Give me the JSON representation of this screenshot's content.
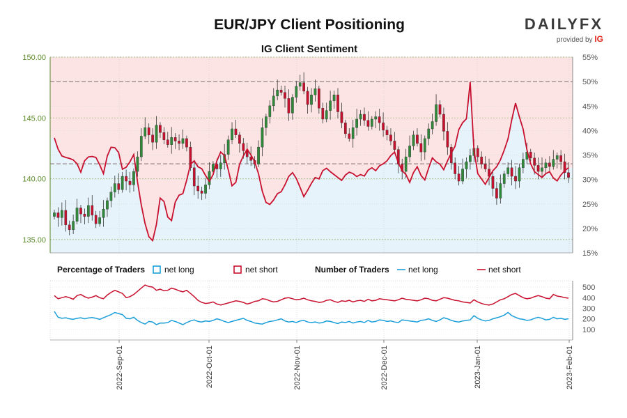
{
  "title": "EUR/JPY Client Positioning",
  "subtitle": "IG Client Sentiment",
  "logo": {
    "brand_a": "DAILY",
    "brand_b": "FX",
    "provided_by": "provided by",
    "ig": "IG"
  },
  "colors": {
    "long": "#1a9fd9",
    "short": "#c8102e",
    "candle_up": "#2f8a3a",
    "candle_down": "#c8102e",
    "bg_short": "#fde4e4",
    "bg_long": "#e6f3fb",
    "price_axis": "#5a8a2a"
  },
  "legend": {
    "percentage_label": "Percentage of Traders",
    "number_label": "Number of Traders",
    "net_long": "net long",
    "net_short": "net short"
  },
  "chart_data": [
    {
      "type": "candlestick",
      "title": "EUR/JPY Client Positioning",
      "subtitle": "IG Client Sentiment",
      "y_price_ticks": [
        "135.00",
        "140.00",
        "145.00",
        "150.00"
      ],
      "y_pct_ticks": [
        "15%",
        "20%",
        "25%",
        "30%",
        "35%",
        "40%",
        "45%",
        "50%",
        "55%"
      ],
      "ylim_price": [
        133.9,
        150.0
      ],
      "ylim_pct": [
        15,
        55
      ],
      "x_ticks": [
        "2022-Sep-01",
        "2022-Oct-01",
        "2022-Nov-01",
        "2022-Dec-01",
        "2023-Jan-01",
        "2023-Feb-01"
      ],
      "price_close": [
        137.2,
        136.8,
        137.4,
        136.2,
        135.8,
        136.5,
        137.6,
        137.1,
        136.9,
        137.8,
        137.0,
        136.3,
        136.8,
        137.5,
        138.2,
        138.9,
        139.6,
        139.1,
        140.2,
        139.8,
        139.5,
        140.6,
        141.8,
        143.5,
        144.2,
        143.6,
        143.0,
        144.4,
        143.8,
        143.2,
        142.8,
        143.4,
        143.1,
        142.9,
        143.3,
        142.6,
        140.9,
        139.4,
        139.0,
        138.8,
        139.5,
        140.6,
        141.2,
        140.8,
        141.3,
        142.0,
        143.2,
        144.1,
        143.6,
        142.9,
        142.3,
        141.8,
        141.5,
        141.2,
        142.6,
        144.2,
        145.1,
        146.0,
        146.8,
        147.3,
        147.1,
        146.6,
        145.4,
        146.7,
        147.6,
        147.9,
        147.2,
        146.1,
        146.9,
        147.4,
        145.8,
        144.9,
        145.6,
        146.4,
        146.9,
        145.5,
        144.6,
        143.7,
        143.3,
        144.2,
        144.9,
        145.3,
        144.8,
        144.3,
        144.9,
        145.1,
        144.6,
        144.0,
        143.6,
        143.1,
        142.4,
        141.2,
        140.6,
        141.8,
        142.7,
        143.6,
        142.9,
        142.2,
        143.3,
        144.1,
        144.7,
        146.1,
        145.3,
        143.9,
        142.6,
        141.3,
        140.4,
        139.8,
        140.8,
        141.4,
        141.9,
        142.5,
        141.8,
        141.2,
        140.8,
        140.2,
        139.2,
        138.4,
        139.6,
        140.4,
        140.9,
        140.2,
        139.8,
        140.9,
        141.6,
        142.2,
        141.7,
        141.1,
        140.6,
        140.9,
        141.3,
        141.0,
        141.6,
        141.9,
        141.4,
        140.5,
        140.1
      ],
      "pct_net_long": [
        38.5,
        36.2,
        34.8,
        34.5,
        34.3,
        34.0,
        33.2,
        31.5,
        33.8,
        34.6,
        34.7,
        34.5,
        33.0,
        31.2,
        34.8,
        36.6,
        36.5,
        35.5,
        32.1,
        32.5,
        33.6,
        35.1,
        29.5,
        24.8,
        21.0,
        18.3,
        17.5,
        20.8,
        26.2,
        25.5,
        22.3,
        21.6,
        25.4,
        26.8,
        27.1,
        29.8,
        33.1,
        33.8,
        32.6,
        32.2,
        30.8,
        29.6,
        31.0,
        33.8,
        35.6,
        34.9,
        32.0,
        28.7,
        29.4,
        33.1,
        34.8,
        36.2,
        35.0,
        33.6,
        31.2,
        27.6,
        25.3,
        24.9,
        25.8,
        27.1,
        27.5,
        28.9,
        30.6,
        31.4,
        30.2,
        28.4,
        26.5,
        27.8,
        29.2,
        30.4,
        30.1,
        31.8,
        32.3,
        31.6,
        31.0,
        30.4,
        29.8,
        30.9,
        31.5,
        31.2,
        30.6,
        31.0,
        30.7,
        31.9,
        32.4,
        31.8,
        32.8,
        33.2,
        33.8,
        34.9,
        35.6,
        33.4,
        31.8,
        31.0,
        29.4,
        31.4,
        32.6,
        30.8,
        29.9,
        32.3,
        34.4,
        33.6,
        33.1,
        32.0,
        33.8,
        35.4,
        36.8,
        40.2,
        41.6,
        42.4,
        49.9,
        36.0,
        31.2,
        30.1,
        29.0,
        30.4,
        31.8,
        32.6,
        34.0,
        36.0,
        38.3,
        42.2,
        45.6,
        42.8,
        40.3,
        36.1,
        33.2,
        31.6,
        31.0,
        30.4,
        31.2,
        31.6,
        30.3,
        29.7,
        30.9,
        31.8,
        32.4
      ],
      "num_net_long": [
        270,
        215,
        205,
        210,
        200,
        195,
        205,
        210,
        200,
        208,
        212,
        205,
        195,
        210,
        225,
        240,
        260,
        250,
        240,
        205,
        200,
        215,
        185,
        165,
        150,
        175,
        170,
        145,
        160,
        160,
        165,
        185,
        175,
        160,
        145,
        165,
        180,
        190,
        175,
        170,
        180,
        175,
        185,
        200,
        190,
        175,
        165,
        175,
        185,
        195,
        205,
        185,
        175,
        160,
        155,
        150,
        165,
        175,
        180,
        190,
        200,
        180,
        170,
        175,
        165,
        180,
        185,
        170,
        165,
        170,
        160,
        165,
        180,
        175,
        165,
        155,
        170,
        165,
        175,
        160,
        170,
        175,
        165,
        185,
        170,
        175,
        190,
        185,
        175,
        180,
        170,
        165,
        190,
        185,
        180,
        175,
        170,
        185,
        190,
        200,
        185,
        175,
        190,
        210,
        200,
        185,
        175,
        170,
        180,
        185,
        190,
        230,
        205,
        190,
        180,
        185,
        200,
        210,
        220,
        235,
        260,
        230,
        215,
        200,
        195,
        185,
        190,
        205,
        215,
        205,
        190,
        195,
        215,
        200,
        205,
        195,
        200
      ],
      "num_net_short": [
        420,
        390,
        400,
        410,
        400,
        385,
        420,
        430,
        410,
        395,
        405,
        420,
        400,
        390,
        425,
        450,
        470,
        455,
        440,
        400,
        410,
        430,
        460,
        490,
        520,
        505,
        500,
        470,
        480,
        465,
        470,
        490,
        480,
        465,
        455,
        470,
        440,
        410,
        375,
        355,
        345,
        350,
        360,
        340,
        330,
        340,
        350,
        360,
        370,
        365,
        355,
        340,
        350,
        365,
        370,
        390,
        385,
        370,
        360,
        365,
        380,
        395,
        400,
        390,
        380,
        385,
        395,
        380,
        370,
        365,
        355,
        360,
        375,
        380,
        365,
        355,
        370,
        365,
        375,
        360,
        370,
        375,
        365,
        385,
        370,
        375,
        390,
        385,
        380,
        375,
        370,
        380,
        395,
        385,
        380,
        375,
        370,
        380,
        395,
        390,
        375,
        370,
        385,
        400,
        395,
        385,
        375,
        370,
        360,
        355,
        350,
        380,
        360,
        345,
        335,
        330,
        340,
        360,
        380,
        390,
        410,
        430,
        440,
        420,
        400,
        390,
        395,
        410,
        420,
        410,
        395,
        390,
        430,
        415,
        410,
        400,
        395
      ]
    }
  ]
}
